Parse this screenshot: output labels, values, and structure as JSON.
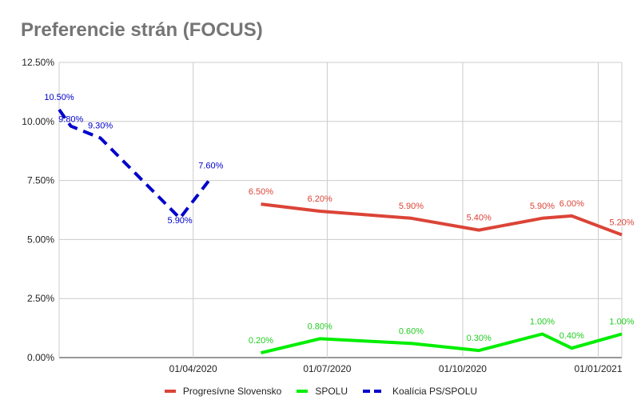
{
  "chart_data": {
    "type": "line",
    "title": "Preferencie strán (FOCUS)",
    "xlabel": "",
    "ylabel": "",
    "ylim": [
      0,
      12.5
    ],
    "y_ticks": [
      {
        "value": 0,
        "label": "0.00%"
      },
      {
        "value": 2.5,
        "label": "2.50%"
      },
      {
        "value": 5,
        "label": "5.00%"
      },
      {
        "value": 7.5,
        "label": "7.50%"
      },
      {
        "value": 10,
        "label": "10.00%"
      },
      {
        "value": 12.5,
        "label": "12.50%"
      }
    ],
    "x_range": [
      "2020-01-01",
      "2021-01-17"
    ],
    "x_ticks": [
      {
        "date": "2020-04-01",
        "label": "01/04/2020"
      },
      {
        "date": "2020-07-01",
        "label": "01/07/2020"
      },
      {
        "date": "2020-10-01",
        "label": "01/10/2020"
      },
      {
        "date": "2021-01-01",
        "label": "01/01/2021"
      }
    ],
    "grid": true,
    "legend_position": "bottom",
    "series": [
      {
        "name": "Progresívne Slovensko",
        "color": "#db4437",
        "dash": "solid",
        "points": [
          {
            "date": "2020-05-17",
            "value": 6.5,
            "label": "6.50%"
          },
          {
            "date": "2020-06-26",
            "value": 6.2,
            "label": "6.20%"
          },
          {
            "date": "2020-08-27",
            "value": 5.9,
            "label": "5.90%"
          },
          {
            "date": "2020-10-12",
            "value": 5.4,
            "label": "5.40%"
          },
          {
            "date": "2020-11-24",
            "value": 5.9,
            "label": "5.90%"
          },
          {
            "date": "2020-12-14",
            "value": 6.0,
            "label": "6.00%"
          },
          {
            "date": "2021-01-17",
            "value": 5.2,
            "label": "5.20%"
          }
        ]
      },
      {
        "name": "SPOLU",
        "color": "#00ee00",
        "dash": "solid",
        "points": [
          {
            "date": "2020-05-17",
            "value": 0.2,
            "label": "0.20%"
          },
          {
            "date": "2020-06-26",
            "value": 0.8,
            "label": "0.80%"
          },
          {
            "date": "2020-08-27",
            "value": 0.6,
            "label": "0.60%"
          },
          {
            "date": "2020-10-12",
            "value": 0.3,
            "label": "0.30%"
          },
          {
            "date": "2020-11-24",
            "value": 1.0,
            "label": "1.00%"
          },
          {
            "date": "2020-12-14",
            "value": 0.4,
            "label": "0.40%"
          },
          {
            "date": "2021-01-17",
            "value": 1.0,
            "label": "1.00%"
          }
        ]
      },
      {
        "name": "Koalícia PS/SPOLU",
        "color": "#0000cc",
        "dash": "dashed",
        "points": [
          {
            "date": "2020-01-01",
            "value": 10.5,
            "label": "10.50%"
          },
          {
            "date": "2020-01-09",
            "value": 9.8,
            "label": "9.80%"
          },
          {
            "date": "2020-01-29",
            "value": 9.3,
            "label": "9.30%"
          },
          {
            "date": "2020-03-23",
            "value": 5.9,
            "label": "5.90%"
          },
          {
            "date": "2020-04-13",
            "value": 7.6,
            "label": "7.60%"
          }
        ]
      }
    ]
  }
}
